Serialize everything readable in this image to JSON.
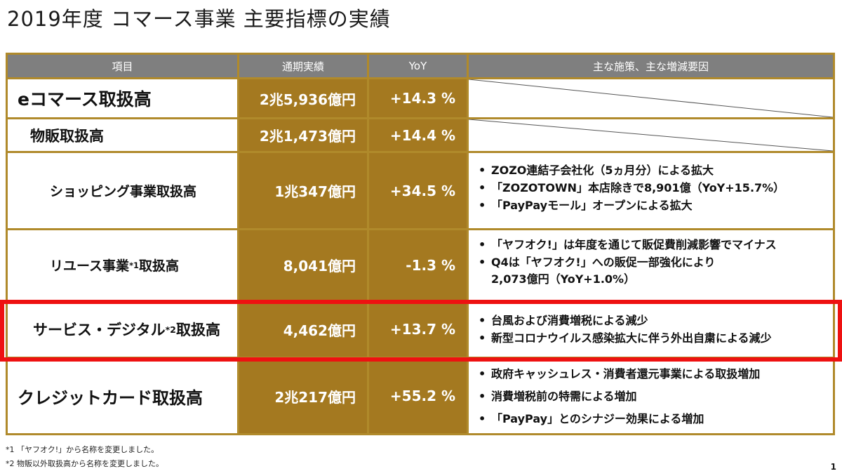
{
  "title": "2019年度 コマース事業 主要指標の実績",
  "headers": {
    "item": "項目",
    "annual": "通期実績",
    "yoy": "YoY",
    "measures": "主な施策、主な増減要因"
  },
  "rows": [
    {
      "label": "eコマース取扱高",
      "annual": "2兆5,936億円",
      "yoy": "+14.3 %",
      "notes": []
    },
    {
      "label": "物販取扱高",
      "annual": "2兆1,473億円",
      "yoy": "+14.4 %",
      "notes": []
    },
    {
      "label": "ショッピング事業取扱高",
      "annual": "1兆347億円",
      "yoy": "+34.5 %",
      "notes": [
        "ZOZO連結子会社化（5ヵ月分）による拡大",
        "「ZOZOTOWN」本店除きで8,901億（YoY+15.7%）",
        "「PayPayモール」オープンによる拡大"
      ]
    },
    {
      "label_main": "リユース事業",
      "label_sup": "*1",
      "label_tail": "取扱高",
      "annual": "8,041億円",
      "yoy": "-1.3 %",
      "notes": [
        "「ヤフオク!」は年度を通じて販促費削減影響でマイナス",
        "Q4は「ヤフオク!」への販促一部強化により"
      ],
      "note_continuation": "2,073億円（YoY+1.0%）"
    },
    {
      "label_main": "サービス・デジタル",
      "label_sup": "*2",
      "label_tail": "取扱高",
      "annual": "4,462億円",
      "yoy": "+13.7 %",
      "notes": [
        "台風および消費増税による減少",
        "新型コロナウイルス感染拡大に伴う外出自粛による減少"
      ]
    },
    {
      "label": "クレジットカード取扱高",
      "annual": "2兆217億円",
      "yoy": "+55.2 %",
      "notes": [
        "政府キャッシュレス・消費者還元事業による取扱増加",
        "消費増税前の特需による増加",
        "「PayPay」とのシナジー効果による増加"
      ]
    }
  ],
  "footnotes": [
    "*1 「ヤフオク!」から名称を変更しました。",
    "*2 物販以外取扱高から名称を変更しました。"
  ],
  "page_number": "1",
  "colors": {
    "header_bg": "#7f7f7f",
    "gold": "#a47920",
    "frame": "#b08a2b",
    "highlight": "#ee1111"
  }
}
